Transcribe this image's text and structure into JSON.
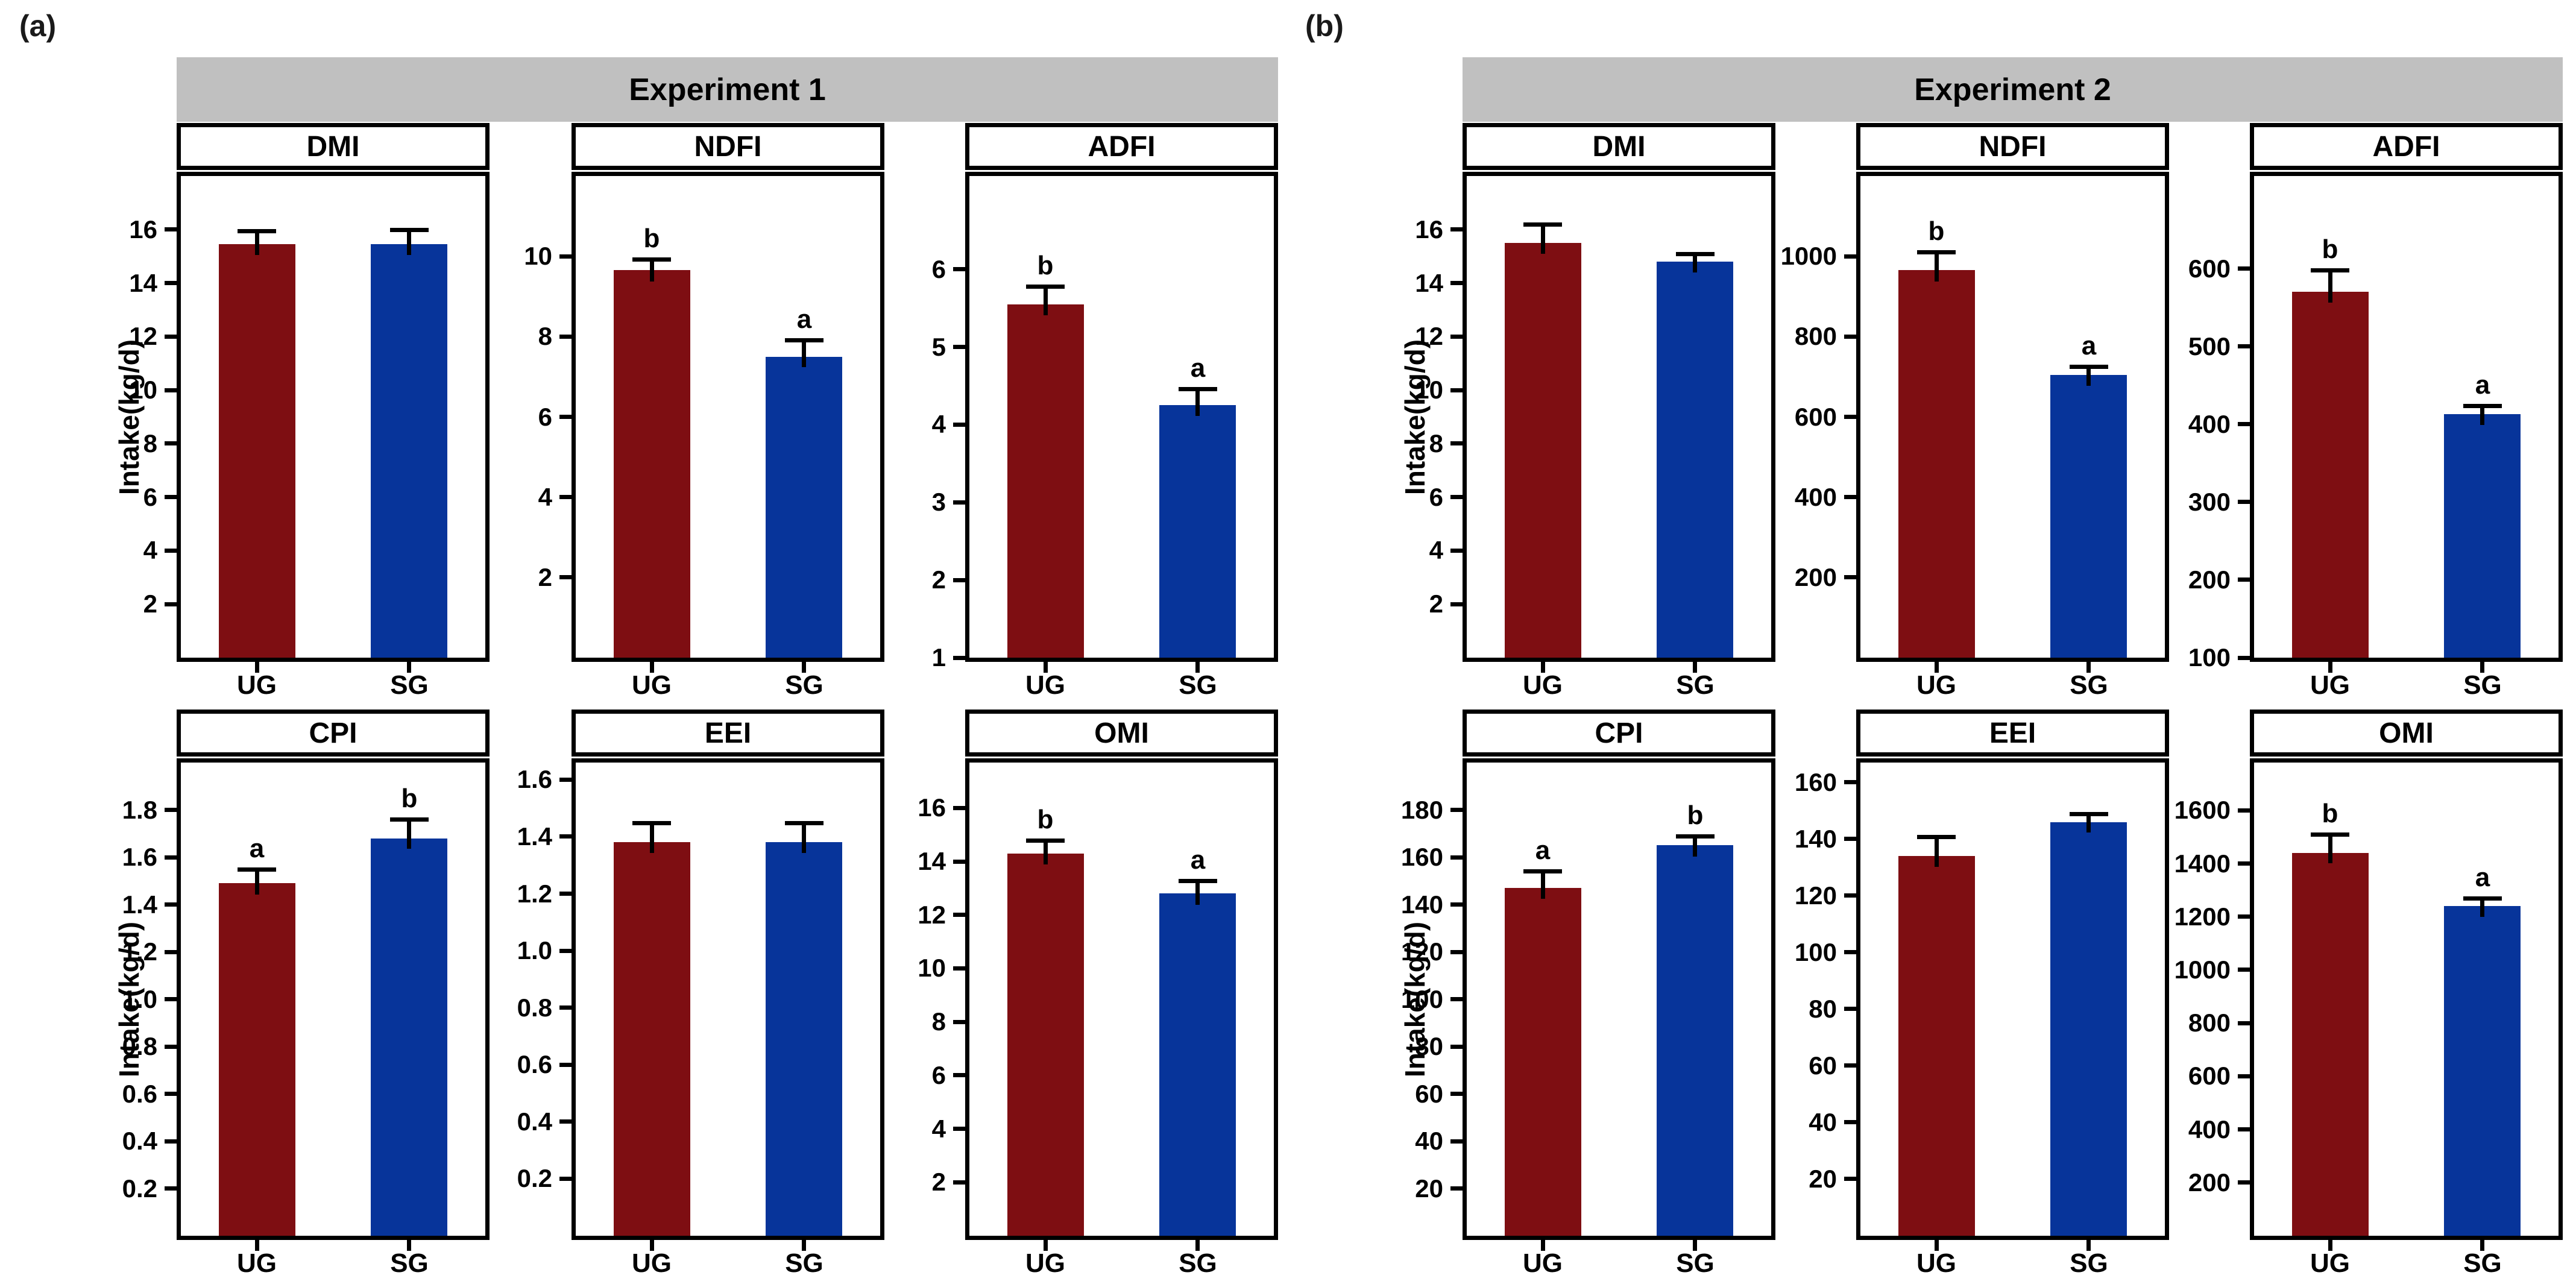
{
  "chart_data": {
    "type": "bar",
    "layout_hints": {
      "grid": false,
      "legend": "none",
      "error_bars": true,
      "bar_groups_per_chart": 2,
      "charts_per_panel": 6
    },
    "figure": {
      "group_labels": [
        "UG",
        "SG"
      ],
      "series_colors": {
        "UG": "#7E0E12",
        "SG": "#07349A"
      },
      "header_bg": "#C0C0C0",
      "border_color": "#000000"
    },
    "panels": [
      {
        "panel_label": "(a)",
        "header": "Experiment 1",
        "y_axis_label": "Intake(kg/d)",
        "charts": [
          {
            "title": "DMI",
            "row": 0,
            "col": 0,
            "ymin": 0,
            "ymax": 18,
            "tick_labels": [
              "2",
              "4",
              "6",
              "8",
              "10",
              "12",
              "14",
              "16"
            ],
            "bars": [
              {
                "group": "UG",
                "value": 15.45,
                "se": 0.4,
                "letter": ""
              },
              {
                "group": "SG",
                "value": 15.45,
                "se": 0.45,
                "letter": ""
              }
            ]
          },
          {
            "title": "NDFI",
            "row": 0,
            "col": 1,
            "ymin": 0,
            "ymax": 12,
            "tick_labels": [
              "2",
              "4",
              "6",
              "8",
              "10"
            ],
            "bars": [
              {
                "group": "UG",
                "value": 9.65,
                "se": 0.22,
                "letter": "b"
              },
              {
                "group": "SG",
                "value": 7.5,
                "se": 0.35,
                "letter": "a"
              }
            ]
          },
          {
            "title": "ADFI",
            "row": 0,
            "col": 2,
            "ymin": 1,
            "ymax": 7.2,
            "tick_labels": [
              "1",
              "2",
              "3",
              "4",
              "5",
              "6"
            ],
            "bars": [
              {
                "group": "UG",
                "value": 5.55,
                "se": 0.2,
                "letter": "b"
              },
              {
                "group": "SG",
                "value": 4.25,
                "se": 0.18,
                "letter": "a"
              }
            ]
          },
          {
            "title": "CPI",
            "row": 1,
            "col": 0,
            "ymin": 0,
            "ymax": 2.0,
            "tick_labels": [
              "0.2",
              "0.4",
              "0.6",
              "0.8",
              "1.0",
              "1.2",
              "1.4",
              "1.6",
              "1.8"
            ],
            "bars": [
              {
                "group": "UG",
                "value": 1.49,
                "se": 0.05,
                "letter": "a"
              },
              {
                "group": "SG",
                "value": 1.68,
                "se": 0.07,
                "letter": "b"
              }
            ]
          },
          {
            "title": "EEI",
            "row": 1,
            "col": 1,
            "ymin": 0,
            "ymax": 1.66,
            "tick_labels": [
              "0.2",
              "0.4",
              "0.6",
              "0.8",
              "1.0",
              "1.2",
              "1.4",
              "1.6"
            ],
            "bars": [
              {
                "group": "UG",
                "value": 1.38,
                "se": 0.06,
                "letter": ""
              },
              {
                "group": "SG",
                "value": 1.38,
                "se": 0.06,
                "letter": ""
              }
            ]
          },
          {
            "title": "OMI",
            "row": 1,
            "col": 2,
            "ymin": 0,
            "ymax": 17.7,
            "tick_labels": [
              "2",
              "4",
              "6",
              "8",
              "10",
              "12",
              "14",
              "16"
            ],
            "bars": [
              {
                "group": "UG",
                "value": 14.3,
                "se": 0.4,
                "letter": "b"
              },
              {
                "group": "SG",
                "value": 12.8,
                "se": 0.4,
                "letter": "a"
              }
            ]
          }
        ]
      },
      {
        "panel_label": "(b)",
        "header": "Experiment 2",
        "y_axis_label": "Intake(kg/d)",
        "charts": [
          {
            "title": "DMI",
            "row": 0,
            "col": 0,
            "ymin": 0,
            "ymax": 18,
            "tick_labels": [
              "2",
              "4",
              "6",
              "8",
              "10",
              "12",
              "14",
              "16"
            ],
            "bars": [
              {
                "group": "UG",
                "value": 15.5,
                "se": 0.6,
                "letter": ""
              },
              {
                "group": "SG",
                "value": 14.8,
                "se": 0.2,
                "letter": ""
              }
            ]
          },
          {
            "title": "NDFI",
            "row": 0,
            "col": 1,
            "ymin": 0,
            "ymax": 1200,
            "tick_labels": [
              "200",
              "400",
              "600",
              "800",
              "1000"
            ],
            "bars": [
              {
                "group": "UG",
                "value": 965,
                "se": 40,
                "letter": "b"
              },
              {
                "group": "SG",
                "value": 705,
                "se": 15,
                "letter": "a"
              }
            ]
          },
          {
            "title": "ADFI",
            "row": 0,
            "col": 2,
            "ymin": 100,
            "ymax": 719,
            "tick_labels": [
              "100",
              "200",
              "300",
              "400",
              "500",
              "600"
            ],
            "bars": [
              {
                "group": "UG",
                "value": 570,
                "se": 25,
                "letter": "b"
              },
              {
                "group": "SG",
                "value": 413,
                "se": 8,
                "letter": "a"
              }
            ]
          },
          {
            "title": "CPI",
            "row": 1,
            "col": 0,
            "ymin": 0,
            "ymax": 200,
            "tick_labels": [
              "20",
              "40",
              "60",
              "80",
              "100",
              "120",
              "140",
              "160",
              "180"
            ],
            "bars": [
              {
                "group": "UG",
                "value": 147,
                "se": 6,
                "letter": "a"
              },
              {
                "group": "SG",
                "value": 165,
                "se": 3,
                "letter": "b"
              }
            ]
          },
          {
            "title": "EEI",
            "row": 1,
            "col": 1,
            "ymin": 0,
            "ymax": 167,
            "tick_labels": [
              "20",
              "40",
              "60",
              "80",
              "100",
              "120",
              "140",
              "160"
            ],
            "bars": [
              {
                "group": "UG",
                "value": 134,
                "se": 6,
                "letter": ""
              },
              {
                "group": "SG",
                "value": 146,
                "se": 2,
                "letter": ""
              }
            ]
          },
          {
            "title": "OMI",
            "row": 1,
            "col": 2,
            "ymin": 0,
            "ymax": 1780,
            "tick_labels": [
              "200",
              "400",
              "600",
              "800",
              "1000",
              "1200",
              "1400",
              "1600"
            ],
            "bars": [
              {
                "group": "UG",
                "value": 1440,
                "se": 60,
                "letter": "b"
              },
              {
                "group": "SG",
                "value": 1240,
                "se": 20,
                "letter": "a"
              }
            ]
          }
        ]
      }
    ]
  }
}
